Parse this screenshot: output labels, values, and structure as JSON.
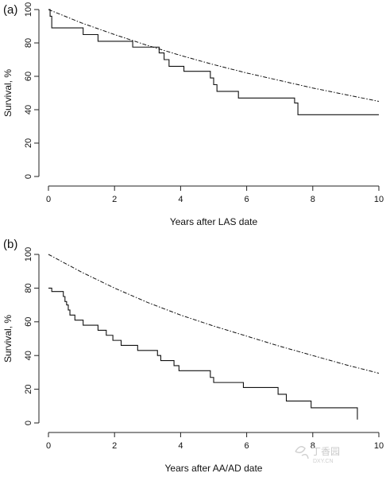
{
  "chart_data": [
    {
      "type": "line",
      "panel_label": "(a)",
      "xlabel": "Years after LAS date",
      "ylabel": "Survival, %",
      "xlim": [
        0,
        10
      ],
      "ylim": [
        0,
        100
      ],
      "x_ticks": [
        0,
        2,
        4,
        6,
        8,
        10
      ],
      "y_ticks": [
        0,
        20,
        40,
        60,
        80,
        100
      ],
      "series": [
        {
          "style": "step-solid",
          "x": [
            0,
            0.05,
            0.1,
            1.05,
            1.5,
            2.55,
            3.35,
            3.5,
            3.65,
            3.8,
            4.1,
            4.9,
            5.0,
            5.1,
            5.75,
            7.45,
            7.55,
            10
          ],
          "y": [
            100,
            96,
            89,
            85,
            81,
            77.5,
            74,
            70,
            66,
            66,
            63,
            59,
            55,
            51,
            47,
            44,
            37,
            37
          ]
        },
        {
          "style": "dash-dot",
          "x": [
            0,
            1,
            2,
            3,
            4,
            5,
            6,
            7,
            8,
            9,
            10
          ],
          "y": [
            100,
            92,
            85,
            78.5,
            72.5,
            67,
            62,
            57.5,
            53,
            49,
            45
          ]
        }
      ]
    },
    {
      "type": "line",
      "panel_label": "(b)",
      "xlabel": "Years after AA/AD date",
      "ylabel": "Survival, %",
      "xlim": [
        0,
        10
      ],
      "ylim": [
        0,
        100
      ],
      "x_ticks": [
        0,
        2,
        4,
        6,
        8,
        10
      ],
      "y_ticks": [
        0,
        20,
        40,
        60,
        80,
        100
      ],
      "series": [
        {
          "style": "step-solid",
          "x": [
            0,
            0.1,
            0.45,
            0.5,
            0.55,
            0.6,
            0.65,
            0.72,
            0.8,
            1.05,
            1.5,
            1.75,
            1.95,
            2.2,
            2.7,
            3.3,
            3.4,
            3.8,
            3.95,
            4.9,
            4.95,
            5.0,
            5.9,
            6.95,
            7.2,
            7.95,
            9.35
          ],
          "y": [
            80,
            78,
            75,
            72,
            70,
            67,
            64,
            64,
            61,
            58,
            55,
            52,
            49,
            46,
            43,
            40,
            37,
            34,
            31,
            27,
            27,
            24,
            21,
            17,
            13,
            9,
            2
          ]
        },
        {
          "style": "dash-dot",
          "x": [
            0,
            1,
            2,
            3,
            4,
            5,
            6,
            7,
            8,
            9,
            10
          ],
          "y": [
            100,
            89.5,
            80,
            71.5,
            64,
            57.5,
            51.5,
            45.5,
            40,
            34.5,
            29.5
          ]
        }
      ]
    }
  ],
  "watermark": {
    "text": "丁香园",
    "subtext": "DXY.CN"
  }
}
